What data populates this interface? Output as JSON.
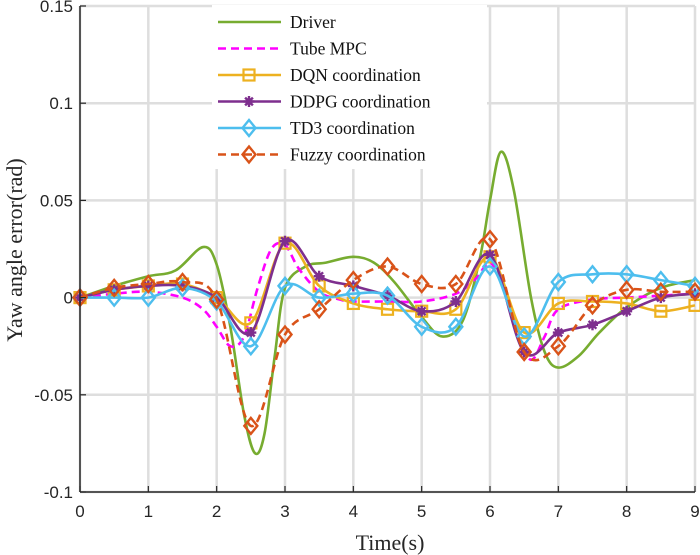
{
  "chart_data": {
    "type": "line",
    "title": "",
    "xlabel": "Time(s)",
    "ylabel": "Yaw angle error(rad)",
    "xlim": [
      0,
      9
    ],
    "ylim": [
      -0.1,
      0.15
    ],
    "xticks": [
      0,
      1,
      2,
      3,
      4,
      5,
      6,
      7,
      8,
      9
    ],
    "xtick_labels": [
      "0",
      "1",
      "2",
      "3",
      "4",
      "5",
      "6",
      "7",
      "8",
      "9"
    ],
    "yticks": [
      -0.1,
      -0.05,
      0,
      0.05,
      0.1,
      0.15
    ],
    "ytick_labels": [
      "-0.1",
      "-0.05",
      "0",
      "0.05",
      "0.1",
      "0.15"
    ],
    "grid": true,
    "legend_position": "top-center",
    "series": [
      {
        "name": "Driver",
        "color": "#77AC30",
        "style": "solid",
        "marker": "none",
        "x": [
          0,
          0.5,
          1,
          1.4,
          1.8,
          2.0,
          2.2,
          2.4,
          2.56,
          2.7,
          2.85,
          3.0,
          3.3,
          3.6,
          4.0,
          4.3,
          4.6,
          5.0,
          5.3,
          5.6,
          5.85,
          6.0,
          6.16,
          6.35,
          6.6,
          6.8,
          7.0,
          7.3,
          7.6,
          8.0,
          8.5,
          9.0
        ],
        "y": [
          0,
          0.006,
          0.011,
          0.014,
          0.026,
          0.017,
          -0.015,
          -0.06,
          -0.08,
          -0.07,
          -0.03,
          0.005,
          0.016,
          0.018,
          0.021,
          0.018,
          0.008,
          -0.01,
          -0.02,
          -0.012,
          0.02,
          0.05,
          0.075,
          0.055,
          0.0,
          -0.028,
          -0.036,
          -0.03,
          -0.018,
          -0.005,
          0.005,
          0.009
        ]
      },
      {
        "name": "Tube MPC",
        "color": "#FF00FF",
        "style": "dashed",
        "marker": "none",
        "x": [
          0,
          0.5,
          1,
          1.5,
          1.8,
          2.0,
          2.2,
          2.4,
          2.6,
          2.8,
          3.0,
          3.2,
          3.5,
          3.8,
          4.0,
          4.5,
          5.0,
          5.5,
          5.8,
          6.0,
          6.2,
          6.4,
          6.6,
          6.8,
          7.0,
          7.5,
          8.0,
          8.5,
          9.0
        ],
        "y": [
          0,
          0.002,
          0.003,
          0.0,
          -0.006,
          -0.015,
          -0.025,
          -0.02,
          0.005,
          0.025,
          0.027,
          0.015,
          0.003,
          -0.001,
          -0.002,
          -0.002,
          -0.002,
          0.002,
          0.01,
          0.018,
          0.005,
          -0.018,
          -0.032,
          -0.02,
          -0.006,
          -0.001,
          0.0,
          0.001,
          0.002
        ]
      },
      {
        "name": "DQN coordination",
        "color": "#EDB120",
        "style": "solid",
        "marker": "square",
        "x": [
          0,
          0.5,
          1,
          1.5,
          2,
          2.5,
          3,
          3.5,
          4,
          4.5,
          5,
          5.5,
          6,
          6.5,
          7,
          7.5,
          8,
          8.5,
          9
        ],
        "y": [
          0,
          0.004,
          0.006,
          0.007,
          0.0,
          -0.013,
          0.028,
          0.006,
          -0.003,
          -0.006,
          -0.007,
          -0.006,
          0.021,
          -0.018,
          -0.003,
          -0.002,
          -0.003,
          -0.007,
          -0.004
        ]
      },
      {
        "name": "DDPG coordination",
        "color": "#7E2F8E",
        "style": "solid",
        "marker": "asterisk",
        "x": [
          0,
          0.5,
          1,
          1.5,
          2,
          2.5,
          3,
          3.5,
          4,
          4.5,
          5,
          5.5,
          6,
          6.5,
          7,
          7.5,
          8,
          8.5,
          9
        ],
        "y": [
          0,
          0.004,
          0.006,
          0.006,
          0.0,
          -0.018,
          0.029,
          0.011,
          0.006,
          0.001,
          -0.007,
          -0.002,
          0.022,
          -0.028,
          -0.018,
          -0.014,
          -0.007,
          0.0,
          0.002
        ]
      },
      {
        "name": "TD3 coordination",
        "color": "#4DBEEE",
        "style": "solid",
        "marker": "diamond",
        "x": [
          0,
          0.5,
          1,
          1.5,
          2,
          2.5,
          3,
          3.5,
          4,
          4.5,
          5,
          5.5,
          6,
          6.5,
          7,
          7.5,
          8,
          8.5,
          9
        ],
        "y": [
          0,
          0.0,
          0.0,
          0.005,
          -0.002,
          -0.025,
          0.006,
          0.0,
          0.002,
          0.001,
          -0.015,
          -0.015,
          0.016,
          -0.02,
          0.008,
          0.012,
          0.012,
          0.009,
          0.006
        ]
      },
      {
        "name": "Fuzzy coordination",
        "color": "#D95319",
        "style": "dashed",
        "marker": "diamond",
        "x": [
          0,
          0.5,
          1,
          1.5,
          2,
          2.5,
          3,
          3.5,
          4,
          4.5,
          5,
          5.5,
          6,
          6.5,
          7,
          7.5,
          8,
          8.5,
          9
        ],
        "y": [
          0,
          0.005,
          0.007,
          0.008,
          -0.001,
          -0.066,
          -0.019,
          -0.006,
          0.009,
          0.016,
          0.007,
          0.007,
          0.03,
          -0.028,
          -0.025,
          -0.004,
          0.004,
          0.003,
          0.003
        ]
      }
    ]
  }
}
